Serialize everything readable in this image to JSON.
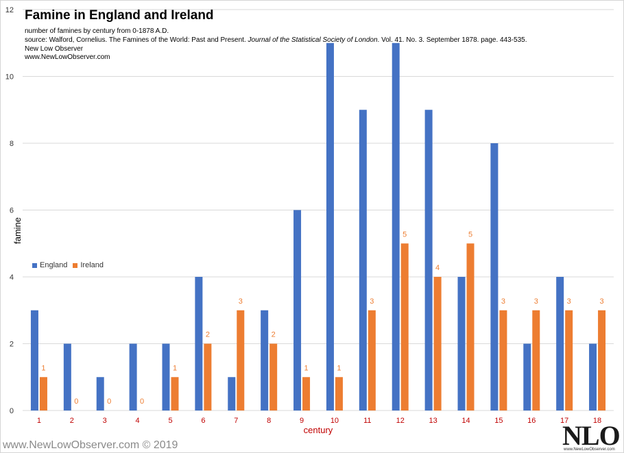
{
  "header": {
    "title": "Famine in England and Ireland",
    "line1": "number of famines by century from 0-1878 A.D.",
    "line2_pre": "source: Walford, Cornelius. The Famines of the World: Past and Present. ",
    "line2_journal": "Journal of the Statistical Society of London",
    "line2_post": ". Vol. 41. No. 3. September 1878. page. 443-535.",
    "line3": "New Low Observer",
    "line4": "www.NewLowObserver.com"
  },
  "footer": {
    "watermark": "www.NewLowObserver.com © 2019",
    "logo": "NLO",
    "logo_sub": "www.NewLowObserver.com"
  },
  "colors": {
    "england": "#4472c4",
    "ireland": "#ed7d31",
    "category_labels": "#c00000",
    "grid": "#d9d9d9"
  },
  "chart_data": {
    "type": "bar",
    "title": "Famine in England and Ireland",
    "xlabel": "century",
    "ylabel": "famine",
    "ylim": [
      0,
      12
    ],
    "yticks": [
      0,
      2,
      4,
      6,
      8,
      10,
      12
    ],
    "categories": [
      "1",
      "2",
      "3",
      "4",
      "5",
      "6",
      "7",
      "8",
      "9",
      "10",
      "11",
      "12",
      "13",
      "14",
      "15",
      "16",
      "17",
      "18"
    ],
    "series": [
      {
        "name": "England",
        "values": [
          3,
          2,
          1,
          2,
          2,
          4,
          1,
          3,
          6,
          11,
          9,
          11,
          9,
          4,
          8,
          2,
          4,
          2
        ],
        "data_labels": false
      },
      {
        "name": "Ireland",
        "values": [
          1,
          0,
          0,
          0,
          1,
          2,
          3,
          2,
          1,
          1,
          3,
          5,
          4,
          5,
          3,
          3,
          3,
          3
        ],
        "data_labels": true
      }
    ],
    "legend_position": "middle-left",
    "grid": true
  }
}
